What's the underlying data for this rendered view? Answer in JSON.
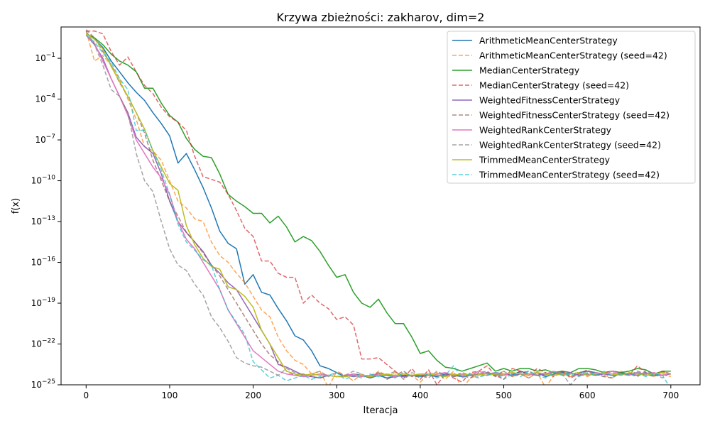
{
  "chart_data": {
    "type": "line",
    "title": "Krzywa zbieżności: zakharov, dim=2",
    "xlabel": "Iteracja",
    "ylabel": "f(x)",
    "xlim": [
      -30,
      735
    ],
    "ylim_exp": [
      -25,
      1.3
    ],
    "yscale": "log",
    "x_ticks": [
      0,
      100,
      200,
      300,
      400,
      500,
      600,
      700
    ],
    "y_ticks": [
      {
        "exp": -1,
        "label": "10^-1"
      },
      {
        "exp": -4,
        "label": "10^-4"
      },
      {
        "exp": -7,
        "label": "10^-7"
      },
      {
        "exp": -10,
        "label": "10^-10"
      },
      {
        "exp": -13,
        "label": "10^-13"
      },
      {
        "exp": -16,
        "label": "10^-16"
      },
      {
        "exp": -19,
        "label": "10^-19"
      },
      {
        "exp": -22,
        "label": "10^-22"
      },
      {
        "exp": -25,
        "label": "10^-25"
      }
    ],
    "legend_position": "top-right",
    "note": "series values are log10(f(x)); x sampled every 10 iterations from 0 to 700",
    "series": [
      {
        "name": "ArithmeticMeanCenterStrategy",
        "color": "#1f77b4",
        "dashed": false,
        "values": [
          0.8,
          0.4,
          -0.2,
          -1.2,
          -2.0,
          -2.8,
          -3.5,
          -4.1,
          -5.0,
          -5.8,
          -6.7,
          -8.7,
          -8.0,
          -9.2,
          -10.5,
          -12.0,
          -13.7,
          -14.6,
          -15.0,
          -17.6,
          -16.9,
          -18.2,
          -18.4,
          -19.4,
          -20.3,
          -21.4,
          -21.7,
          -22.5,
          -23.6,
          -23.8,
          -24.1,
          -24.4,
          -24.2,
          -24.3,
          -24.5,
          -24.3,
          -24.5,
          -24.4,
          -24.3,
          -24.3,
          -24.4,
          -24.3,
          -24.4,
          -24.2,
          -24.3,
          -24.4,
          -24.3,
          -24.2,
          -24.3,
          -24.1,
          -24.2,
          -24.3,
          -24.0,
          -24.2,
          -24.1,
          -24.4,
          -24.2,
          -24.1,
          -24.2,
          -24.1,
          -24.0,
          -24.1,
          -24.2,
          -24.0,
          -24.1,
          -24.2,
          -24.1,
          -24.3,
          -24.2,
          -24.1,
          -24.2
        ]
      },
      {
        "name": "ArithmeticMeanCenterStrategy (seed=42)",
        "color": "#ff7f0e",
        "dashed": true,
        "values": [
          1.0,
          -1.2,
          -0.8,
          -1.5,
          -2.5,
          -4.0,
          -5.5,
          -7.5,
          -7.8,
          -8.5,
          -10.0,
          -11.5,
          -12.0,
          -12.8,
          -13.0,
          -14.5,
          -15.5,
          -16.0,
          -16.8,
          -17.5,
          -18.5,
          -19.5,
          -20.0,
          -21.5,
          -22.5,
          -23.2,
          -23.5,
          -24.2,
          -24.0,
          -25.2,
          -24.0,
          -24.3,
          -24.7,
          -24.2,
          -24.5,
          -24.0,
          -24.3,
          -24.1,
          -24.5,
          -24.3,
          -24.8,
          -24.2,
          -24.1,
          -24.6,
          -24.0,
          -25.3,
          -24.5,
          -24.3,
          -24.1,
          -24.3,
          -24.0,
          -24.4,
          -24.2,
          -24.5,
          -24.1,
          -25.2,
          -24.3,
          -24.0,
          -24.4,
          -24.2,
          -24.4,
          -24.1,
          -24.3,
          -24.5,
          -24.0,
          -24.2,
          -24.3,
          -24.1,
          -24.4,
          -24.2,
          -24.4
        ]
      },
      {
        "name": "MedianCenterStrategy",
        "color": "#2ca02c",
        "dashed": false,
        "values": [
          0.8,
          0.5,
          0.0,
          -0.7,
          -1.2,
          -1.5,
          -2.0,
          -3.2,
          -3.2,
          -4.3,
          -5.2,
          -5.7,
          -6.9,
          -7.7,
          -8.2,
          -8.3,
          -9.5,
          -11.0,
          -11.5,
          -11.9,
          -12.4,
          -12.4,
          -13.1,
          -12.6,
          -13.4,
          -14.5,
          -14.1,
          -14.4,
          -15.2,
          -16.2,
          -17.1,
          -16.9,
          -18.2,
          -19.0,
          -19.3,
          -18.7,
          -19.7,
          -20.5,
          -20.5,
          -21.5,
          -22.7,
          -22.5,
          -23.2,
          -23.7,
          -23.8,
          -24.0,
          -23.8,
          -23.6,
          -23.4,
          -24.0,
          -23.8,
          -24.0,
          -23.8,
          -23.8,
          -24.0,
          -23.9,
          -24.1,
          -24.0,
          -24.1,
          -23.8,
          -23.8,
          -23.9,
          -24.1,
          -24.0,
          -24.1,
          -24.0,
          -23.8,
          -23.9,
          -24.2,
          -24.0,
          -24.0
        ]
      },
      {
        "name": "MedianCenterStrategy (seed=42)",
        "color": "#d62728",
        "dashed": true,
        "values": [
          1.0,
          1.0,
          0.8,
          -0.5,
          -1.5,
          -0.9,
          -2.0,
          -3.0,
          -3.6,
          -4.6,
          -5.3,
          -5.7,
          -6.3,
          -8.2,
          -9.7,
          -9.9,
          -10.1,
          -11.0,
          -12.2,
          -13.5,
          -14.1,
          -15.9,
          -15.9,
          -16.8,
          -17.1,
          -17.1,
          -19.0,
          -18.4,
          -19.0,
          -19.4,
          -20.2,
          -20.0,
          -20.6,
          -23.1,
          -23.1,
          -23.0,
          -23.5,
          -24.0,
          -24.5,
          -23.8,
          -24.6,
          -23.9,
          -25.0,
          -24.2,
          -24.5,
          -24.8,
          -24.1,
          -24.0,
          -23.6,
          -24.3,
          -24.6,
          -23.8,
          -24.0,
          -24.3,
          -23.8,
          -24.1,
          -24.4,
          -24.0,
          -24.5,
          -24.2,
          -23.9,
          -24.3,
          -24.1,
          -24.0,
          -24.2,
          -24.3,
          -23.6,
          -24.1,
          -24.3,
          -24.0,
          -24.2
        ]
      },
      {
        "name": "WeightedFitnessCenterStrategy",
        "color": "#9467bd",
        "dashed": false,
        "values": [
          0.7,
          0.0,
          -1.0,
          -2.5,
          -3.8,
          -5.0,
          -6.8,
          -7.5,
          -8.0,
          -9.5,
          -11.5,
          -13.0,
          -13.8,
          -14.5,
          -15.2,
          -16.2,
          -16.8,
          -17.5,
          -18.0,
          -19.0,
          -20.0,
          -21.0,
          -22.0,
          -23.5,
          -23.7,
          -24.0,
          -24.3,
          -24.4,
          -24.5,
          -24.3,
          -24.4,
          -24.3,
          -24.4,
          -24.3,
          -24.4,
          -24.2,
          -24.3,
          -24.3,
          -24.4,
          -24.3,
          -24.3,
          -24.3,
          -24.3,
          -24.3,
          -24.2,
          -24.4,
          -24.3,
          -24.2,
          -24.1,
          -24.3,
          -24.2,
          -24.3,
          -24.2,
          -24.2,
          -24.3,
          -24.2,
          -24.3,
          -24.2,
          -24.1,
          -24.3,
          -24.2,
          -24.3,
          -24.2,
          -24.3,
          -24.2,
          -24.2,
          -24.3,
          -24.1,
          -24.3,
          -24.3,
          -24.2
        ]
      },
      {
        "name": "WeightedFitnessCenterStrategy (seed=42)",
        "color": "#8c564b",
        "dashed": true,
        "values": [
          1.1,
          0.5,
          -0.5,
          -1.5,
          -2.8,
          -3.8,
          -5.0,
          -6.5,
          -8.5,
          -10.0,
          -11.5,
          -12.6,
          -13.8,
          -14.5,
          -15.3,
          -16.2,
          -17.0,
          -18.0,
          -19.0,
          -20.0,
          -21.0,
          -22.0,
          -22.8,
          -23.3,
          -24.0,
          -24.3,
          -24.2,
          -24.4,
          -24.5,
          -24.3,
          -24.4,
          -24.4,
          -24.3,
          -24.4,
          -24.3,
          -24.1,
          -24.6,
          -24.3,
          -24.0,
          -24.4,
          -24.4,
          -24.2,
          -24.3,
          -24.1,
          -24.4,
          -24.3,
          -24.5,
          -24.1,
          -24.0,
          -24.4,
          -24.3,
          -24.2,
          -24.1,
          -24.0,
          -24.3,
          -24.1,
          -24.2,
          -24.0,
          -24.4,
          -24.1,
          -24.3,
          -24.2,
          -24.4,
          -24.5,
          -24.1,
          -24.3,
          -24.0,
          -24.2,
          -24.4,
          -24.0,
          -24.2
        ]
      },
      {
        "name": "WeightedRankCenterStrategy",
        "color": "#e377c2",
        "dashed": false,
        "values": [
          0.7,
          0.1,
          -1.2,
          -2.5,
          -3.8,
          -5.2,
          -7.0,
          -8.0,
          -9.0,
          -9.8,
          -11.0,
          -13.0,
          -14.3,
          -15.0,
          -16.0,
          -17.0,
          -18.0,
          -19.5,
          -20.5,
          -21.5,
          -22.5,
          -23.0,
          -23.5,
          -24.0,
          -24.2,
          -24.3,
          -24.4,
          -24.3,
          -24.2,
          -24.3,
          -24.4,
          -24.3,
          -24.2,
          -24.4,
          -24.3,
          -24.2,
          -24.3,
          -24.4,
          -24.2,
          -24.3,
          -24.2,
          -24.3,
          -24.2,
          -24.1,
          -24.3,
          -24.2,
          -24.3,
          -24.0,
          -24.2,
          -24.1,
          -24.3,
          -24.1,
          -24.2,
          -24.3,
          -24.1,
          -24.2,
          -24.0,
          -24.3,
          -24.2,
          -24.1,
          -24.3,
          -24.1,
          -24.2,
          -24.0,
          -24.2,
          -24.3,
          -24.1,
          -24.2,
          -24.1,
          -24.3,
          -24.2
        ]
      },
      {
        "name": "WeightedRankCenterStrategy (seed=42)",
        "color": "#7f7f7f",
        "dashed": true,
        "values": [
          1.0,
          0.0,
          -1.5,
          -3.3,
          -3.8,
          -5.0,
          -8.0,
          -10.0,
          -10.8,
          -13.0,
          -15.0,
          -16.2,
          -16.6,
          -17.6,
          -18.4,
          -20.0,
          -20.8,
          -21.8,
          -23.0,
          -23.4,
          -23.6,
          -23.7,
          -24.0,
          -24.3,
          -23.8,
          -24.1,
          -24.3,
          -24.2,
          -24.0,
          -24.4,
          -24.1,
          -24.3,
          -24.0,
          -24.2,
          -24.5,
          -24.1,
          -24.3,
          -24.0,
          -24.6,
          -24.1,
          -24.3,
          -24.5,
          -24.0,
          -24.3,
          -24.4,
          -24.1,
          -24.3,
          -24.5,
          -24.1,
          -24.3,
          -24.0,
          -24.4,
          -24.2,
          -24.5,
          -24.1,
          -24.3,
          -24.0,
          -24.2,
          -25.0,
          -24.3,
          -24.0,
          -24.2,
          -24.4,
          -24.1,
          -24.3,
          -24.2,
          -24.4,
          -24.0,
          -24.2,
          -24.5,
          -24.1
        ]
      },
      {
        "name": "TrimmedMeanCenterStrategy",
        "color": "#bcbd22",
        "dashed": false,
        "values": [
          0.8,
          0.4,
          -0.3,
          -1.6,
          -2.7,
          -3.8,
          -5.0,
          -6.2,
          -7.8,
          -9.0,
          -10.2,
          -10.7,
          -13.3,
          -14.7,
          -15.7,
          -16.3,
          -16.5,
          -17.8,
          -18.0,
          -18.5,
          -19.3,
          -21.0,
          -22.0,
          -23.0,
          -24.0,
          -24.2,
          -24.3,
          -24.2,
          -24.3,
          -24.3,
          -24.4,
          -24.4,
          -24.3,
          -24.3,
          -24.4,
          -24.3,
          -24.2,
          -24.3,
          -24.2,
          -24.3,
          -24.2,
          -24.2,
          -24.3,
          -24.4,
          -24.2,
          -24.3,
          -24.2,
          -24.2,
          -24.3,
          -24.2,
          -24.2,
          -24.1,
          -24.2,
          -24.2,
          -24.1,
          -24.2,
          -24.3,
          -24.2,
          -24.2,
          -24.1,
          -24.3,
          -24.2,
          -24.1,
          -24.2,
          -24.3,
          -24.1,
          -24.2,
          -24.3,
          -24.2,
          -24.1,
          -24.2
        ]
      },
      {
        "name": "TrimmedMeanCenterStrategy (seed=42)",
        "color": "#17becf",
        "dashed": true,
        "values": [
          0.7,
          0.2,
          -0.6,
          -1.3,
          -2.5,
          -3.3,
          -6.3,
          -6.3,
          -7.8,
          -9.2,
          -11.0,
          -13.2,
          -14.5,
          -15.1,
          -15.8,
          -16.2,
          -18.0,
          -19.5,
          -20.4,
          -21.3,
          -23.3,
          -23.9,
          -24.5,
          -24.3,
          -24.7,
          -24.5,
          -24.3,
          -24.6,
          -24.4,
          -24.3,
          -24.1,
          -24.6,
          -24.3,
          -24.5,
          -24.2,
          -24.4,
          -24.3,
          -24.5,
          -24.1,
          -24.3,
          -24.4,
          -24.2,
          -24.5,
          -24.3,
          -23.6,
          -24.5,
          -24.2,
          -24.4,
          -24.3,
          -24.1,
          -24.6,
          -24.2,
          -24.4,
          -24.0,
          -24.3,
          -24.5,
          -24.1,
          -24.3,
          -24.2,
          -24.4,
          -24.1,
          -24.3,
          -24.0,
          -24.4,
          -24.2,
          -24.3,
          -24.1,
          -24.4,
          -24.2,
          -24.3,
          -25.3
        ]
      }
    ]
  }
}
